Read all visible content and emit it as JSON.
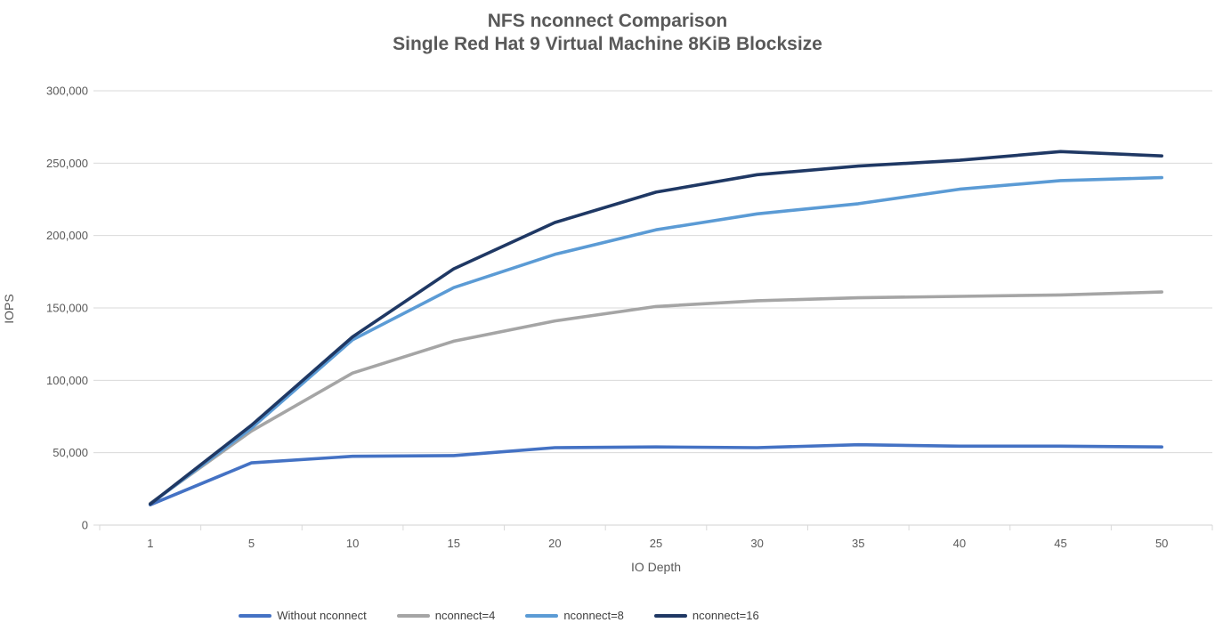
{
  "title": {
    "line1": "NFS nconnect Comparison",
    "line2": "Single Red Hat 9 Virtual Machine 8KiB Blocksize"
  },
  "chart_data": {
    "type": "line",
    "title": "NFS nconnect Comparison Single Red Hat 9 Virtual Machine 8KiB Blocksize",
    "x_axis_label": "IO Depth",
    "y_axis_label": "IOPS",
    "x": [
      1,
      5,
      10,
      15,
      20,
      25,
      30,
      35,
      40,
      45,
      50
    ],
    "ylim": [
      0,
      300000
    ],
    "y_tick_step": 50000,
    "y_tick_labels": [
      "0",
      "50,000",
      "100,000",
      "150,000",
      "200,000",
      "250,000",
      "300,000"
    ],
    "grid": true,
    "legend_position": "bottom",
    "series": [
      {
        "name": "Without nconnect",
        "color": "#4472C4",
        "values": [
          14000,
          43000,
          47500,
          48000,
          53500,
          54000,
          53500,
          55500,
          54500,
          54500,
          54000
        ]
      },
      {
        "name": "nconnect=4",
        "color": "#A5A5A5",
        "values": [
          15000,
          65000,
          105000,
          127000,
          141000,
          151000,
          155000,
          157000,
          158000,
          159000,
          161000
        ]
      },
      {
        "name": "nconnect=8",
        "color": "#5B9BD5",
        "values": [
          14500,
          67000,
          128000,
          164000,
          187000,
          204000,
          215000,
          222000,
          232000,
          238000,
          240000
        ]
      },
      {
        "name": "nconnect=16",
        "color": "#1F3864",
        "values": [
          14500,
          69000,
          130000,
          177000,
          209000,
          230000,
          242000,
          248000,
          252000,
          258000,
          255000
        ]
      }
    ]
  },
  "colors": {
    "background": "#FFFFFF",
    "text": "#595959",
    "legend_text": "#404040",
    "gridline": "#D9D9D9",
    "axis": "#D0D0D0"
  }
}
